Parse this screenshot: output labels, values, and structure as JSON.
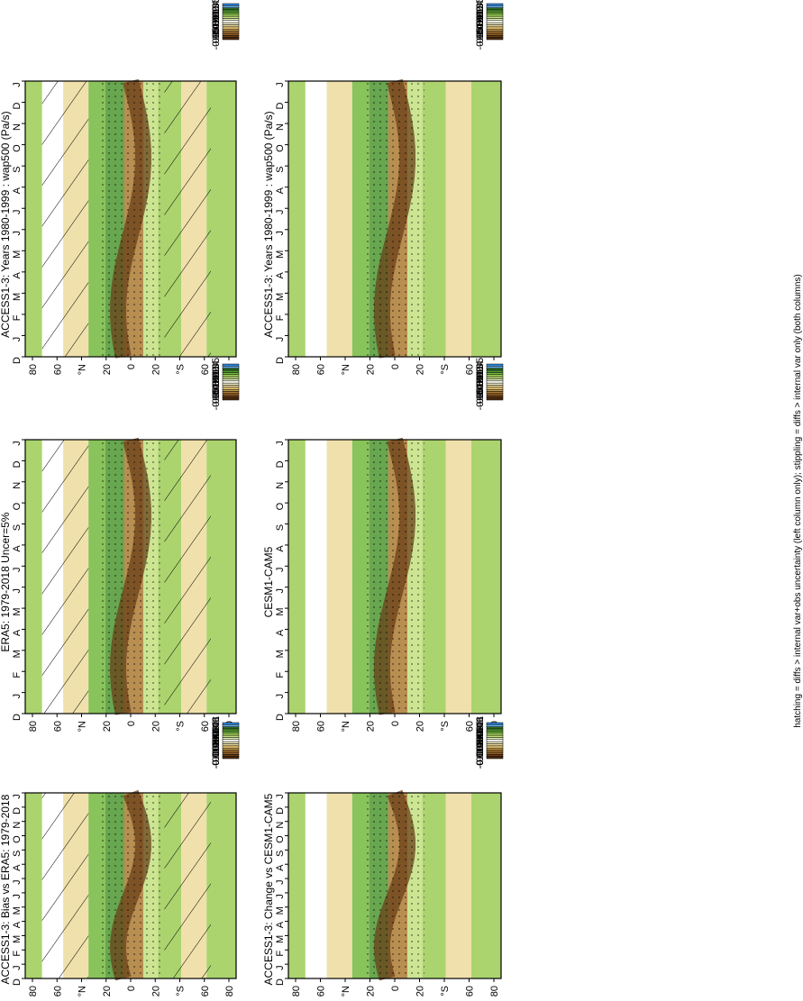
{
  "footer_note": "hatching = diffs > internal var+obs uncertainty (left column only); stippling = diffs > internal var only (both columns)",
  "shared_axes": {
    "month_ticks": [
      "D",
      "J",
      "F",
      "M",
      "A",
      "M",
      "J",
      "J",
      "A",
      "S",
      "O",
      "N",
      "D",
      "J"
    ],
    "lat_ticks": [
      "80",
      "60",
      "°N",
      "20",
      "0",
      "20",
      "°S",
      "60",
      "80"
    ]
  },
  "colorbar_fields": {
    "levels": [
      "0.05",
      "0.04",
      "0.03",
      "0.02",
      "0.01",
      "0",
      "-0.01",
      "-0.02",
      "-0.03",
      "-0.04",
      "-0.05"
    ],
    "colors": [
      "#2b83d9",
      "#6fb6ea",
      "#2e6b1f",
      "#4d9630",
      "#74b83e",
      "#9ccd55",
      "#c3e07f",
      "#e2f0b8",
      "#ffffff",
      "#f7f1c9",
      "#eddc9d",
      "#dfc070",
      "#c99f4c",
      "#ac7a33",
      "#8a5a24",
      "#6a3f18",
      "#4d2a10"
    ]
  },
  "colorbar_diffs": {
    "levels": [
      "0.01",
      "0.008",
      "0.006",
      "0.004",
      "0.002",
      "0",
      "-0.002",
      "-0.004",
      "-0.006",
      "-0.008",
      "-0.01"
    ],
    "colors": [
      "#2b83d9",
      "#6fb6ea",
      "#2e6b1f",
      "#4d9630",
      "#74b83e",
      "#9ccd55",
      "#c3e07f",
      "#e2f0b8",
      "#ffffff",
      "#f7f1c9",
      "#eddc9d",
      "#dfc070",
      "#c99f4c",
      "#ac7a33",
      "#8a5a24",
      "#6a3f18",
      "#4d2a10"
    ]
  },
  "chart_data": [
    {
      "type": "heatmap",
      "title": "ACCESS1-3: Years 1980-1999 : wap500 (Pa/s)",
      "x": "month",
      "y": "latitude",
      "colorbar": "fields",
      "hatching": true,
      "stippling": true
    },
    {
      "type": "heatmap",
      "title": "ACCESS1-3: Years 1980-1999 : wap500 (Pa/s)",
      "x": "month",
      "y": "latitude",
      "colorbar": "fields",
      "hatching": false,
      "stippling": true
    },
    {
      "type": "heatmap",
      "title": "ERA5: 1979-2018 Uncer=5%",
      "x": "month",
      "y": "latitude",
      "colorbar": "fields",
      "hatching": true,
      "stippling": true
    },
    {
      "type": "heatmap",
      "title": "CESM1-CAM5",
      "x": "month",
      "y": "latitude",
      "colorbar": "fields",
      "hatching": false,
      "stippling": true
    },
    {
      "type": "heatmap",
      "title": "ACCESS1-3: Bias vs ERA5: 1979-2018",
      "x": "month",
      "y": "latitude",
      "colorbar": "diffs",
      "hatching": true,
      "stippling": true
    },
    {
      "type": "heatmap",
      "title": "ACCESS1-3: Change vs CESM1-CAM5",
      "x": "month",
      "y": "latitude",
      "colorbar": "diffs",
      "hatching": false,
      "stippling": true
    }
  ]
}
